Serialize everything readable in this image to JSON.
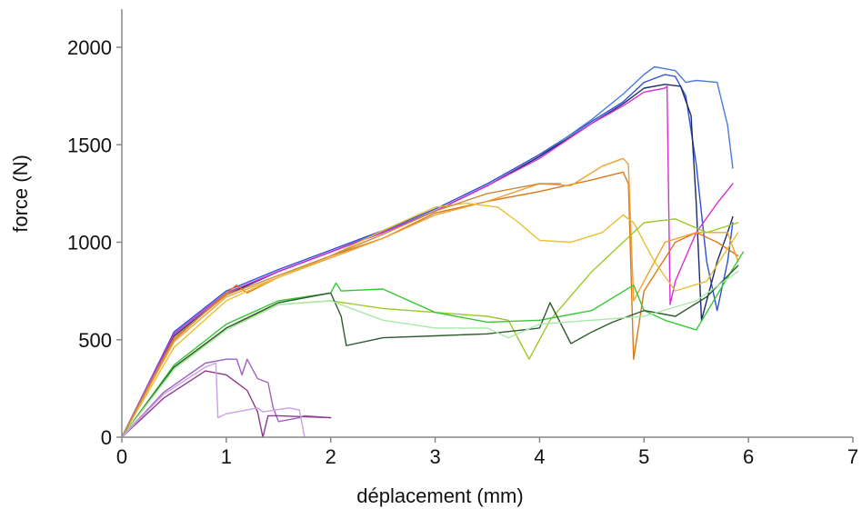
{
  "chart_data": {
    "type": "line",
    "title": "",
    "xlabel": "déplacement (mm)",
    "ylabel": "force (N)",
    "xlim": [
      0,
      7
    ],
    "ylim": [
      0,
      2000
    ],
    "x_ticks": [
      "0",
      "1",
      "2",
      "3",
      "4",
      "5",
      "6",
      "7"
    ],
    "y_ticks": [
      "0",
      "500",
      "1000",
      "1500",
      "2000"
    ],
    "grid": false,
    "legend": "none",
    "series": [
      {
        "color": "#2e4fd6",
        "x": [
          0,
          0.5,
          1.0,
          1.5,
          2.0,
          2.5,
          3.0,
          3.5,
          4.0,
          4.5,
          4.8,
          5.0,
          5.2,
          5.3,
          5.4,
          5.5,
          5.6,
          5.7,
          5.8,
          5.85
        ],
        "y": [
          0,
          540,
          750,
          860,
          960,
          1060,
          1170,
          1300,
          1450,
          1620,
          1720,
          1820,
          1860,
          1850,
          1750,
          1400,
          900,
          650,
          900,
          1100
        ]
      },
      {
        "color": "#4a7bd8",
        "x": [
          0,
          0.5,
          1.0,
          1.5,
          2.0,
          2.5,
          3.0,
          3.5,
          4.0,
          4.5,
          4.8,
          5.0,
          5.1,
          5.3,
          5.4,
          5.5,
          5.7,
          5.8,
          5.85
        ],
        "y": [
          0,
          530,
          740,
          850,
          950,
          1055,
          1160,
          1290,
          1440,
          1630,
          1760,
          1860,
          1900,
          1880,
          1820,
          1830,
          1820,
          1600,
          1380
        ]
      },
      {
        "color": "#1c2a6e",
        "x": [
          0,
          0.5,
          1.0,
          1.5,
          2.0,
          2.5,
          3.0,
          3.5,
          4.0,
          4.5,
          4.8,
          5.0,
          5.2,
          5.35,
          5.45,
          5.5,
          5.55,
          5.6,
          5.7,
          5.8,
          5.85
        ],
        "y": [
          0,
          520,
          730,
          850,
          950,
          1050,
          1160,
          1290,
          1440,
          1610,
          1710,
          1790,
          1810,
          1800,
          1650,
          1200,
          600,
          700,
          900,
          1050,
          1130
        ]
      },
      {
        "color": "#d62fd0",
        "x": [
          0,
          0.5,
          1.0,
          1.5,
          2.0,
          2.5,
          3.0,
          3.5,
          4.0,
          4.5,
          4.8,
          5.0,
          5.2,
          5.22,
          5.25,
          5.3,
          5.5,
          5.7,
          5.85
        ],
        "y": [
          0,
          530,
          740,
          850,
          950,
          1050,
          1160,
          1290,
          1430,
          1610,
          1700,
          1770,
          1790,
          1800,
          680,
          800,
          1050,
          1200,
          1300
        ]
      },
      {
        "color": "#d97a1a",
        "x": [
          0,
          0.5,
          1.0,
          1.1,
          1.2,
          1.5,
          2.0,
          2.5,
          3.0,
          3.5,
          4.0,
          4.5,
          4.8,
          4.85,
          4.9,
          5.0,
          5.3,
          5.5,
          5.7,
          5.9
        ],
        "y": [
          0,
          500,
          740,
          780,
          740,
          820,
          930,
          1020,
          1150,
          1210,
          1260,
          1320,
          1360,
          1300,
          400,
          750,
          1000,
          1050,
          1000,
          930
        ]
      },
      {
        "color": "#f0a030",
        "x": [
          0,
          0.5,
          1.0,
          1.5,
          2.0,
          2.5,
          3.0,
          3.5,
          4.0,
          4.3,
          4.6,
          4.8,
          4.85,
          4.9,
          5.2,
          5.5,
          5.8,
          5.9
        ],
        "y": [
          0,
          490,
          720,
          820,
          920,
          1020,
          1140,
          1210,
          1300,
          1290,
          1390,
          1430,
          1400,
          700,
          1000,
          1050,
          1050,
          900
        ]
      },
      {
        "color": "#e8c030",
        "x": [
          0,
          0.5,
          1.0,
          1.5,
          2.0,
          2.5,
          3.0,
          3.3,
          3.6,
          3.8,
          4.0,
          4.3,
          4.6,
          4.8,
          4.9,
          5.1,
          5.3,
          5.6,
          5.9
        ],
        "y": [
          0,
          460,
          700,
          820,
          930,
          1060,
          1180,
          1200,
          1180,
          1100,
          1010,
          1000,
          1050,
          1140,
          1100,
          900,
          750,
          800,
          1050
        ]
      },
      {
        "color": "#c98a3a",
        "x": [
          0,
          0.5,
          1.0,
          1.5,
          2.0,
          2.5,
          3.0,
          3.5,
          4.0,
          4.2
        ],
        "y": [
          0,
          510,
          730,
          830,
          930,
          1040,
          1160,
          1250,
          1300,
          1300
        ]
      },
      {
        "color": "#9ec82a",
        "x": [
          0,
          0.5,
          1.0,
          1.5,
          2.0,
          2.5,
          3.0,
          3.5,
          3.7,
          3.9,
          4.1,
          4.5,
          4.8,
          5.0,
          5.3,
          5.6,
          5.9
        ],
        "y": [
          0,
          350,
          560,
          680,
          700,
          660,
          640,
          620,
          600,
          400,
          600,
          850,
          1000,
          1100,
          1120,
          1050,
          1100
        ]
      },
      {
        "color": "#37c837",
        "x": [
          0,
          0.5,
          1.0,
          1.5,
          2.0,
          2.05,
          2.1,
          2.5,
          3.0,
          3.5,
          4.0,
          4.5,
          4.9,
          5.0,
          5.2,
          5.5,
          5.8,
          5.95
        ],
        "y": [
          0,
          370,
          580,
          700,
          740,
          790,
          750,
          760,
          640,
          590,
          600,
          650,
          780,
          650,
          600,
          550,
          820,
          950
        ]
      },
      {
        "color": "#2f5a2f",
        "x": [
          0,
          0.5,
          1.0,
          1.5,
          2.0,
          2.1,
          2.15,
          2.5,
          3.0,
          3.5,
          4.0,
          4.1,
          4.3,
          4.5,
          4.7,
          5.0,
          5.3,
          5.6,
          5.9
        ],
        "y": [
          0,
          360,
          560,
          690,
          740,
          620,
          470,
          510,
          520,
          530,
          560,
          690,
          480,
          540,
          590,
          650,
          620,
          720,
          880
        ]
      },
      {
        "color": "#a8e8a8",
        "x": [
          0,
          0.5,
          1.0,
          1.5,
          2.0,
          2.5,
          3.0,
          3.5,
          3.7,
          4.0,
          4.5,
          5.0,
          5.5,
          5.9
        ],
        "y": [
          0,
          350,
          550,
          680,
          700,
          600,
          560,
          560,
          510,
          580,
          600,
          620,
          700,
          850
        ]
      },
      {
        "color": "#a060c0",
        "x": [
          0,
          0.4,
          0.8,
          1.0,
          1.1,
          1.15,
          1.2,
          1.3,
          1.4,
          1.45,
          1.5,
          1.7,
          1.75,
          2.0
        ],
        "y": [
          0,
          230,
          380,
          400,
          400,
          320,
          400,
          300,
          280,
          150,
          80,
          100,
          110,
          100
        ]
      },
      {
        "color": "#8a3a8a",
        "x": [
          0,
          0.4,
          0.8,
          1.0,
          1.1,
          1.2,
          1.3,
          1.35,
          1.4,
          1.5,
          2.0
        ],
        "y": [
          0,
          200,
          340,
          320,
          280,
          240,
          130,
          0,
          110,
          110,
          100
        ]
      },
      {
        "color": "#c9a0e8",
        "x": [
          0,
          0.4,
          0.8,
          0.9,
          0.92,
          1.0,
          1.3,
          1.35,
          1.6,
          1.7,
          1.75
        ],
        "y": [
          0,
          220,
          360,
          380,
          100,
          120,
          150,
          130,
          150,
          140,
          0
        ]
      }
    ]
  }
}
